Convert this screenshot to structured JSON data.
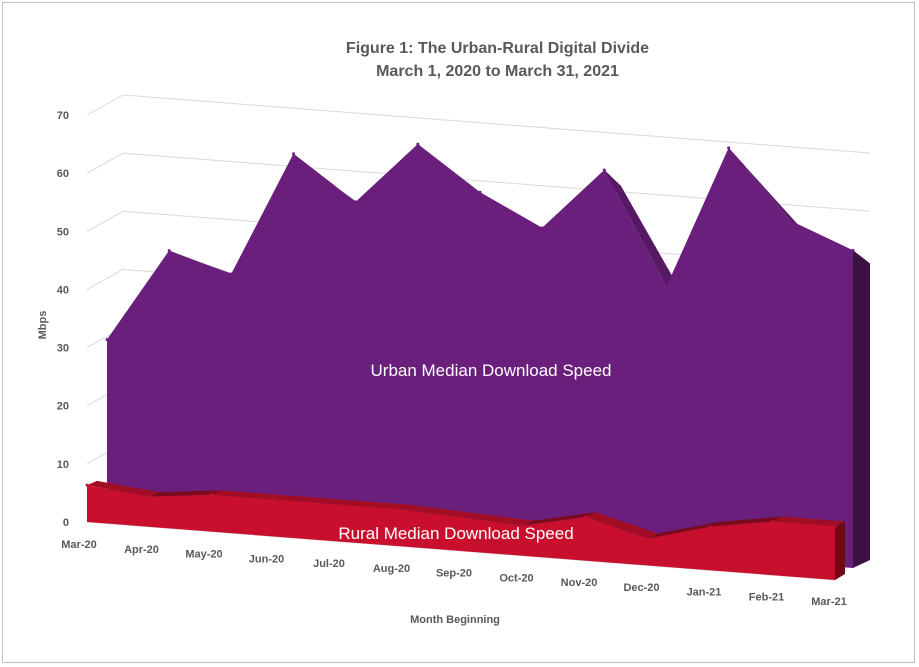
{
  "chart_data": {
    "type": "area",
    "title": "Figure 1: The Urban-Rural Digital Divide",
    "subtitle": "March 1, 2020 to March 31, 2021",
    "xlabel": "Month Beginning",
    "ylabel": "Mbps",
    "ylim": [
      0,
      70
    ],
    "yticks": [
      "0",
      "10",
      "20",
      "30",
      "40",
      "50",
      "60",
      "70"
    ],
    "categories": [
      "Mar-20",
      "Apr-20",
      "May-20",
      "Jun-20",
      "Jul-20",
      "Aug-20",
      "Sep-20",
      "Oct-20",
      "Nov-20",
      "Dec-20",
      "Jan-21",
      "Feb-21",
      "Mar-21"
    ],
    "series": [
      {
        "name": "Urban Median Download Speed",
        "color": "#6b1f7c",
        "values": [
          28,
          43,
          40,
          60,
          53,
          63,
          56,
          51,
          61,
          43,
          66,
          55,
          51
        ]
      },
      {
        "name": "Rural Median Download Speed",
        "color": "#c8102e",
        "values": [
          5.5,
          4.5,
          5.5,
          5.5,
          5.5,
          5.5,
          5,
          4.5,
          6.5,
          4,
          6.5,
          8,
          8
        ]
      }
    ]
  }
}
